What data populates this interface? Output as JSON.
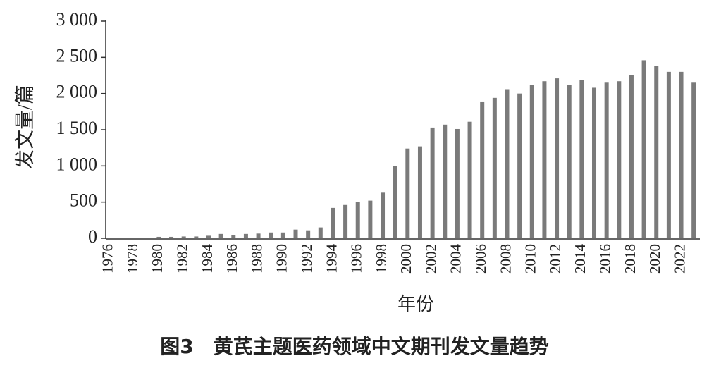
{
  "chart_data": {
    "type": "bar",
    "title": "图3　黄芪主题医药领域中文期刊发文量趋势",
    "x_label": "年份",
    "y_label": "发文量/篇",
    "color": "#7a7a7a",
    "categories": [
      "1976",
      null,
      "1978",
      null,
      "1980",
      null,
      "1982",
      null,
      "1984",
      null,
      "1986",
      null,
      "1988",
      null,
      "1990",
      null,
      "1992",
      null,
      "1994",
      null,
      "1996",
      null,
      "1998",
      null,
      "2000",
      null,
      "2002",
      null,
      "2004",
      null,
      "2006",
      null,
      "2008",
      null,
      "2010",
      null,
      "2012",
      null,
      "2014",
      null,
      "2016",
      null,
      "2018",
      null,
      "2020",
      null,
      "2022",
      null
    ],
    "values": [
      0,
      0,
      0,
      0,
      20,
      20,
      25,
      25,
      35,
      60,
      40,
      60,
      65,
      80,
      80,
      120,
      110,
      150,
      420,
      460,
      500,
      520,
      630,
      1000,
      1240,
      1270,
      1530,
      1570,
      1510,
      1610,
      1890,
      1940,
      2060,
      2000,
      2120,
      2170,
      2210,
      2120,
      2190,
      2080,
      2150,
      2170,
      2250,
      2460,
      2380,
      2300,
      2300,
      2150
    ],
    "ylim": [
      0,
      3000
    ],
    "yticks": [
      0,
      500,
      {
        "value": 1000,
        "label": "1 000"
      },
      {
        "value": 1500,
        "label": "1 500"
      },
      {
        "value": 2000,
        "label": "2 000"
      },
      {
        "value": 2500,
        "label": "2 500"
      },
      {
        "value": 3000,
        "label": "3 000"
      }
    ],
    "grid": false
  }
}
